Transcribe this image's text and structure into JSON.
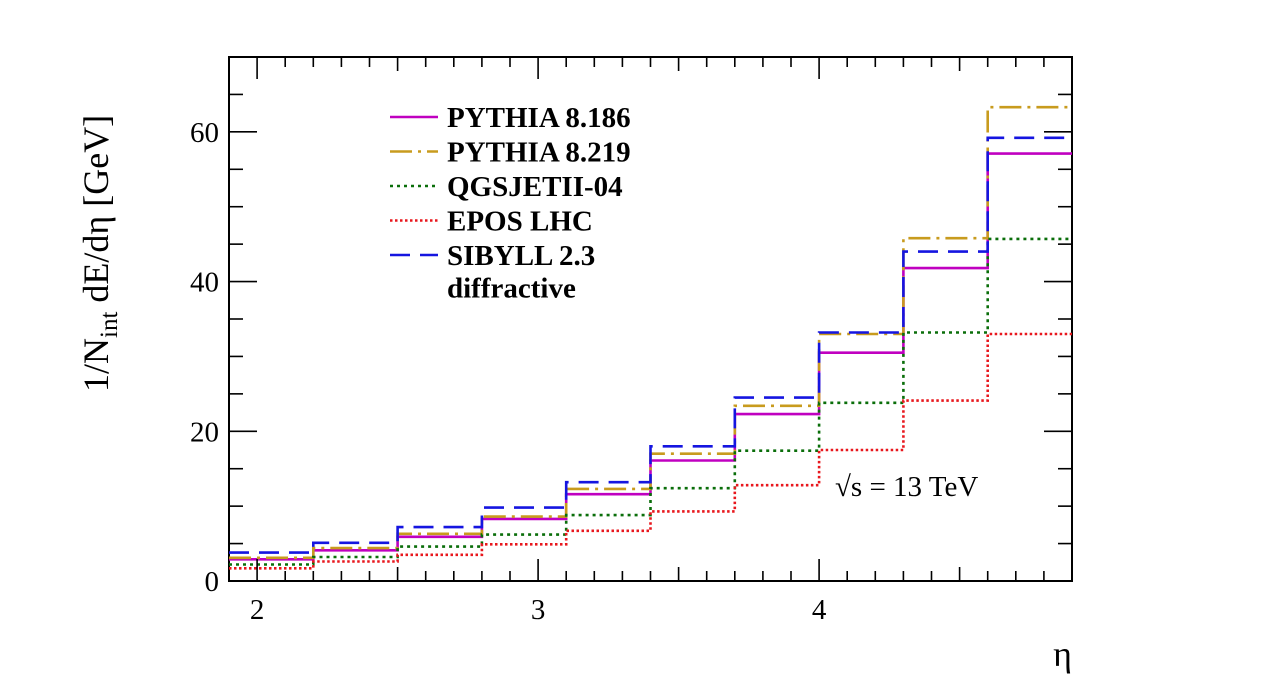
{
  "chart_data": {
    "type": "line",
    "step": true,
    "xlabel": "η",
    "ylabel": "1/N_int dE/dη [GeV]",
    "ylabel_main_prefix": "1/N",
    "ylabel_sub": "int",
    "ylabel_main_suffix": " dE/dη [GeV]",
    "xlim": [
      1.9,
      4.9
    ],
    "ylim": [
      0,
      70
    ],
    "xticks": [
      "2",
      "3",
      "4"
    ],
    "yticks": [
      "0",
      "20",
      "40",
      "60"
    ],
    "annotation": {
      "sqrt": "√s",
      "rest": " = 13 TeV"
    },
    "legend_position": "top-left",
    "legend_note": "diffractive",
    "bin_edges": [
      1.9,
      2.2,
      2.5,
      2.8,
      3.1,
      3.4,
      3.7,
      4.0,
      4.3,
      4.6,
      4.9
    ],
    "series": [
      {
        "name": "PYTHIA 8.186",
        "color": "#c000c0",
        "style": "solid",
        "values": [
          2.9,
          4.1,
          5.9,
          8.3,
          11.6,
          16.1,
          22.3,
          30.5,
          41.8,
          57.1
        ]
      },
      {
        "name": "PYTHIA 8.219",
        "color": "#c89b1e",
        "style": "dashdot",
        "values": [
          3.1,
          4.4,
          6.3,
          8.6,
          12.3,
          17.0,
          23.4,
          33.0,
          45.8,
          63.3
        ]
      },
      {
        "name": "QGSJETII-04",
        "color": "#0a6e0a",
        "style": "dotted",
        "values": [
          2.2,
          3.2,
          4.6,
          6.2,
          8.8,
          12.4,
          17.4,
          23.8,
          33.2,
          45.7
        ]
      },
      {
        "name": "EPOS LHC",
        "color": "#e8171d",
        "style": "dense-dotted",
        "values": [
          1.7,
          2.6,
          3.5,
          4.9,
          6.7,
          9.3,
          12.8,
          17.5,
          24.1,
          33.0
        ]
      },
      {
        "name": "SIBYLL 2.3",
        "color": "#1515e0",
        "style": "dashed",
        "values": [
          3.8,
          5.1,
          7.2,
          9.8,
          13.2,
          18.0,
          24.5,
          33.2,
          44.0,
          59.2
        ]
      }
    ]
  }
}
